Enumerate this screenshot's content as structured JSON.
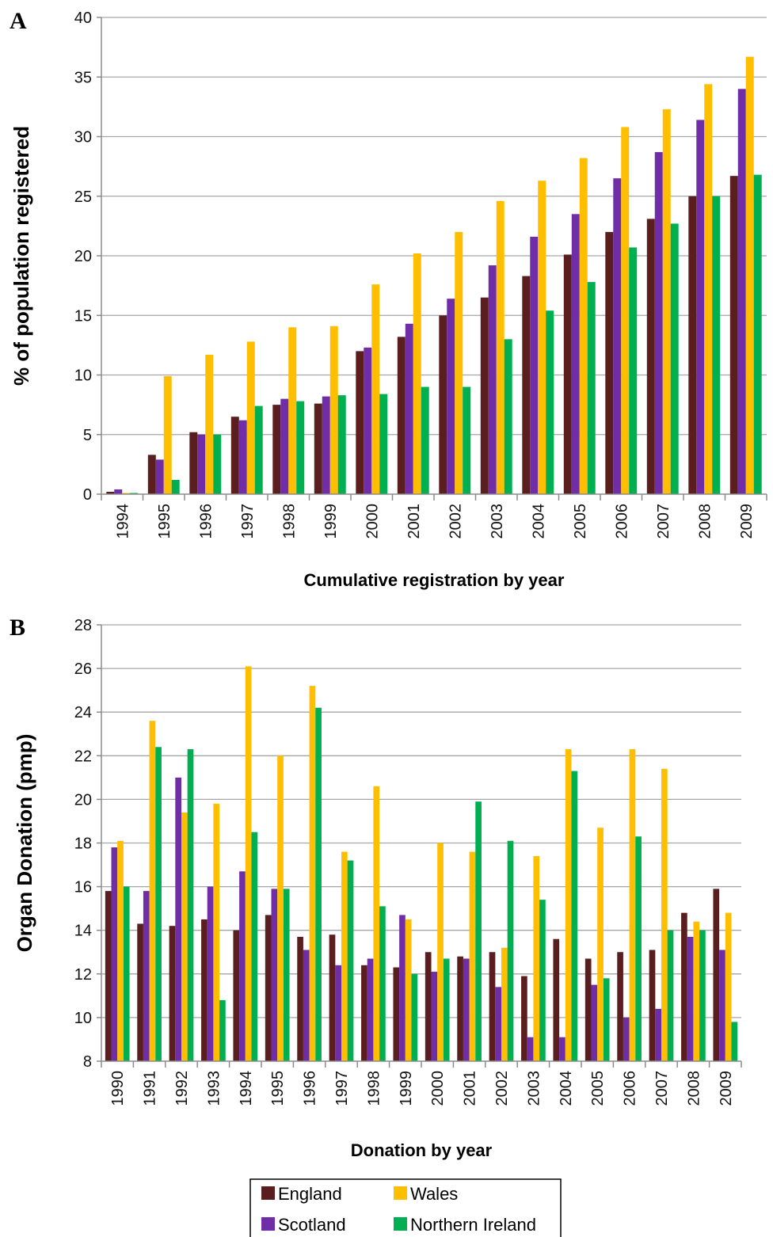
{
  "colors": {
    "England": "#5b1e1e",
    "Scotland": "#6f2da8",
    "Wales": "#ffbe00",
    "Northern Ireland": "#00b050"
  },
  "legend": {
    "entries": [
      "England",
      "Wales",
      "Scotland",
      "Northern Ireland"
    ]
  },
  "chart_data": [
    {
      "panel_label": "A",
      "type": "bar",
      "xlabel": "Cumulative registration by year",
      "ylabel": "% of population registered",
      "ylim": [
        0,
        40
      ],
      "yticks": [
        0,
        5,
        10,
        15,
        20,
        25,
        30,
        35,
        40
      ],
      "grid": true,
      "categories": [
        "1994",
        "1995",
        "1996",
        "1997",
        "1998",
        "1999",
        "2000",
        "2001",
        "2002",
        "2003",
        "2004",
        "2005",
        "2006",
        "2007",
        "2008",
        "2009"
      ],
      "series": [
        {
          "name": "England",
          "values": [
            0.2,
            3.3,
            5.2,
            6.5,
            7.5,
            7.6,
            12.0,
            13.2,
            15.0,
            16.5,
            18.3,
            20.1,
            22.0,
            23.1,
            25.0,
            26.7
          ]
        },
        {
          "name": "Scotland",
          "values": [
            0.4,
            2.9,
            5.0,
            6.2,
            8.0,
            8.2,
            12.3,
            14.3,
            16.4,
            19.2,
            21.6,
            23.5,
            26.5,
            28.7,
            31.4,
            34.0
          ]
        },
        {
          "name": "Wales",
          "values": [
            0.1,
            9.9,
            11.7,
            12.8,
            14.0,
            14.1,
            17.6,
            20.2,
            22.0,
            24.6,
            26.3,
            28.2,
            30.8,
            32.3,
            34.4,
            36.7
          ]
        },
        {
          "name": "Northern Ireland",
          "values": [
            0.1,
            1.2,
            5.0,
            7.4,
            7.8,
            8.3,
            8.4,
            9.0,
            9.0,
            13.0,
            15.4,
            17.8,
            20.7,
            22.7,
            25.0,
            26.8
          ]
        }
      ]
    },
    {
      "panel_label": "B",
      "type": "bar",
      "xlabel": "Donation by year",
      "ylabel": "Organ Donation (pmp)",
      "ylim": [
        8,
        28
      ],
      "yticks": [
        8,
        10,
        12,
        14,
        16,
        18,
        20,
        22,
        24,
        26,
        28
      ],
      "grid": true,
      "categories": [
        "1990",
        "1991",
        "1992",
        "1993",
        "1994",
        "1995",
        "1996",
        "1997",
        "1998",
        "1999",
        "2000",
        "2001",
        "2002",
        "2003",
        "2004",
        "2005",
        "2006",
        "2007",
        "2008",
        "2009"
      ],
      "series": [
        {
          "name": "England",
          "values": [
            15.8,
            14.3,
            14.2,
            14.5,
            14.0,
            14.7,
            13.7,
            13.8,
            12.4,
            12.3,
            13.0,
            12.8,
            13.0,
            11.9,
            13.6,
            12.7,
            13.0,
            13.1,
            14.8,
            15.9
          ]
        },
        {
          "name": "Scotland",
          "values": [
            17.8,
            15.8,
            21.0,
            16.0,
            16.7,
            15.9,
            13.1,
            12.4,
            12.7,
            14.7,
            12.1,
            12.7,
            11.4,
            9.1,
            9.1,
            11.5,
            10.0,
            10.4,
            13.7,
            13.1
          ]
        },
        {
          "name": "Wales",
          "values": [
            18.1,
            23.6,
            19.4,
            19.8,
            26.1,
            22.0,
            25.2,
            17.6,
            20.6,
            14.5,
            18.0,
            17.6,
            13.2,
            17.4,
            22.3,
            18.7,
            22.3,
            21.4,
            14.4,
            14.8
          ]
        },
        {
          "name": "Northern Ireland",
          "values": [
            16.0,
            22.4,
            22.3,
            10.8,
            18.5,
            15.9,
            24.2,
            17.2,
            15.1,
            12.0,
            12.7,
            19.9,
            18.1,
            15.4,
            21.3,
            11.8,
            18.3,
            14.0,
            14.0,
            9.8
          ]
        }
      ]
    }
  ]
}
